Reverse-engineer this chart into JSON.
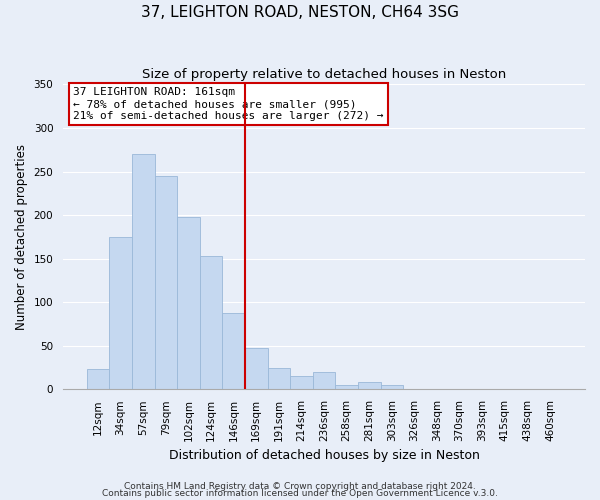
{
  "title": "37, LEIGHTON ROAD, NESTON, CH64 3SG",
  "subtitle": "Size of property relative to detached houses in Neston",
  "xlabel": "Distribution of detached houses by size in Neston",
  "ylabel": "Number of detached properties",
  "bar_labels": [
    "12sqm",
    "34sqm",
    "57sqm",
    "79sqm",
    "102sqm",
    "124sqm",
    "146sqm",
    "169sqm",
    "191sqm",
    "214sqm",
    "236sqm",
    "258sqm",
    "281sqm",
    "303sqm",
    "326sqm",
    "348sqm",
    "370sqm",
    "393sqm",
    "415sqm",
    "438sqm",
    "460sqm"
  ],
  "bar_heights": [
    23,
    175,
    270,
    245,
    198,
    153,
    88,
    47,
    25,
    15,
    20,
    5,
    8,
    5,
    0,
    0,
    0,
    0,
    0,
    0,
    0
  ],
  "bar_color": "#c5d8f0",
  "bar_edge_color": "#9ab8d8",
  "vline_x_index": 7,
  "vline_color": "#cc0000",
  "annotation_title": "37 LEIGHTON ROAD: 161sqm",
  "annotation_line1": "← 78% of detached houses are smaller (995)",
  "annotation_line2": "21% of semi-detached houses are larger (272) →",
  "annotation_box_facecolor": "#ffffff",
  "annotation_box_edgecolor": "#cc0000",
  "ylim": [
    0,
    350
  ],
  "footer1": "Contains HM Land Registry data © Crown copyright and database right 2024.",
  "footer2": "Contains public sector information licensed under the Open Government Licence v.3.0.",
  "background_color": "#e8eef8",
  "grid_color": "#ffffff",
  "title_fontsize": 11,
  "subtitle_fontsize": 9.5,
  "xlabel_fontsize": 9,
  "ylabel_fontsize": 8.5,
  "tick_fontsize": 7.5,
  "annotation_fontsize": 8,
  "footer_fontsize": 6.5
}
